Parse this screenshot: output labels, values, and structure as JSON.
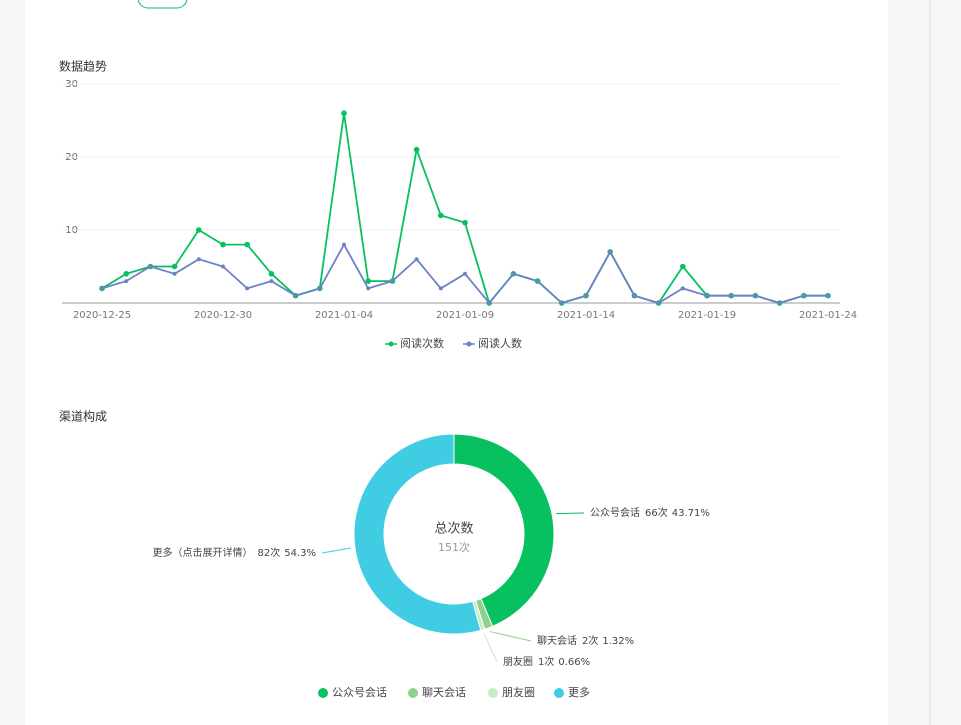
{
  "chart_data": [
    {
      "type": "line",
      "title": "数据趋势",
      "x": [
        "2020-12-25",
        "2020-12-26",
        "2020-12-27",
        "2020-12-28",
        "2020-12-29",
        "2020-12-30",
        "2020-12-31",
        "2021-01-01",
        "2021-01-02",
        "2021-01-03",
        "2021-01-04",
        "2021-01-05",
        "2021-01-06",
        "2021-01-07",
        "2021-01-08",
        "2021-01-09",
        "2021-01-10",
        "2021-01-11",
        "2021-01-12",
        "2021-01-13",
        "2021-01-14",
        "2021-01-15",
        "2021-01-16",
        "2021-01-17",
        "2021-01-18",
        "2021-01-19",
        "2021-01-20",
        "2021-01-21",
        "2021-01-22",
        "2021-01-23",
        "2021-01-24"
      ],
      "series": [
        {
          "name": "阅读次数",
          "color": "#07c160",
          "values": [
            2,
            4,
            5,
            5,
            10,
            8,
            8,
            4,
            1,
            2,
            26,
            3,
            3,
            21,
            12,
            11,
            0,
            4,
            3,
            0,
            1,
            7,
            1,
            0,
            5,
            1,
            1,
            1,
            0,
            1,
            1
          ]
        },
        {
          "name": "阅读人数",
          "color": "#6b82c7",
          "values": [
            2,
            3,
            5,
            4,
            6,
            5,
            2,
            3,
            1,
            2,
            8,
            2,
            3,
            6,
            2,
            4,
            0,
            4,
            3,
            0,
            1,
            7,
            1,
            0,
            2,
            1,
            1,
            1,
            0,
            1,
            1
          ]
        }
      ],
      "ylim": [
        0,
        30
      ],
      "yticks": [
        10,
        20,
        30
      ],
      "grid": true,
      "legend": "bottom"
    },
    {
      "type": "donut",
      "title": "渠道构成",
      "categories": [
        "公众号会话",
        "聊天会话",
        "朋友圈",
        "更多"
      ],
      "label_names": [
        "公众号会话",
        "聊天会话",
        "朋友圈",
        "更多（点击展开详情）"
      ],
      "values": [
        66,
        2,
        1,
        82
      ],
      "value_labels": [
        "66次",
        "2次",
        "1次",
        "82次"
      ],
      "percents": [
        43.71,
        1.32,
        0.66,
        54.3
      ],
      "percent_labels": [
        "43.71%",
        "1.32%",
        "0.66%",
        "54.3%"
      ],
      "colors": [
        "#07c160",
        "#8fd18a",
        "#c8ecc3",
        "#40cde3"
      ],
      "center_title": "总次数",
      "center_value": "151次",
      "legend": "bottom"
    }
  ]
}
